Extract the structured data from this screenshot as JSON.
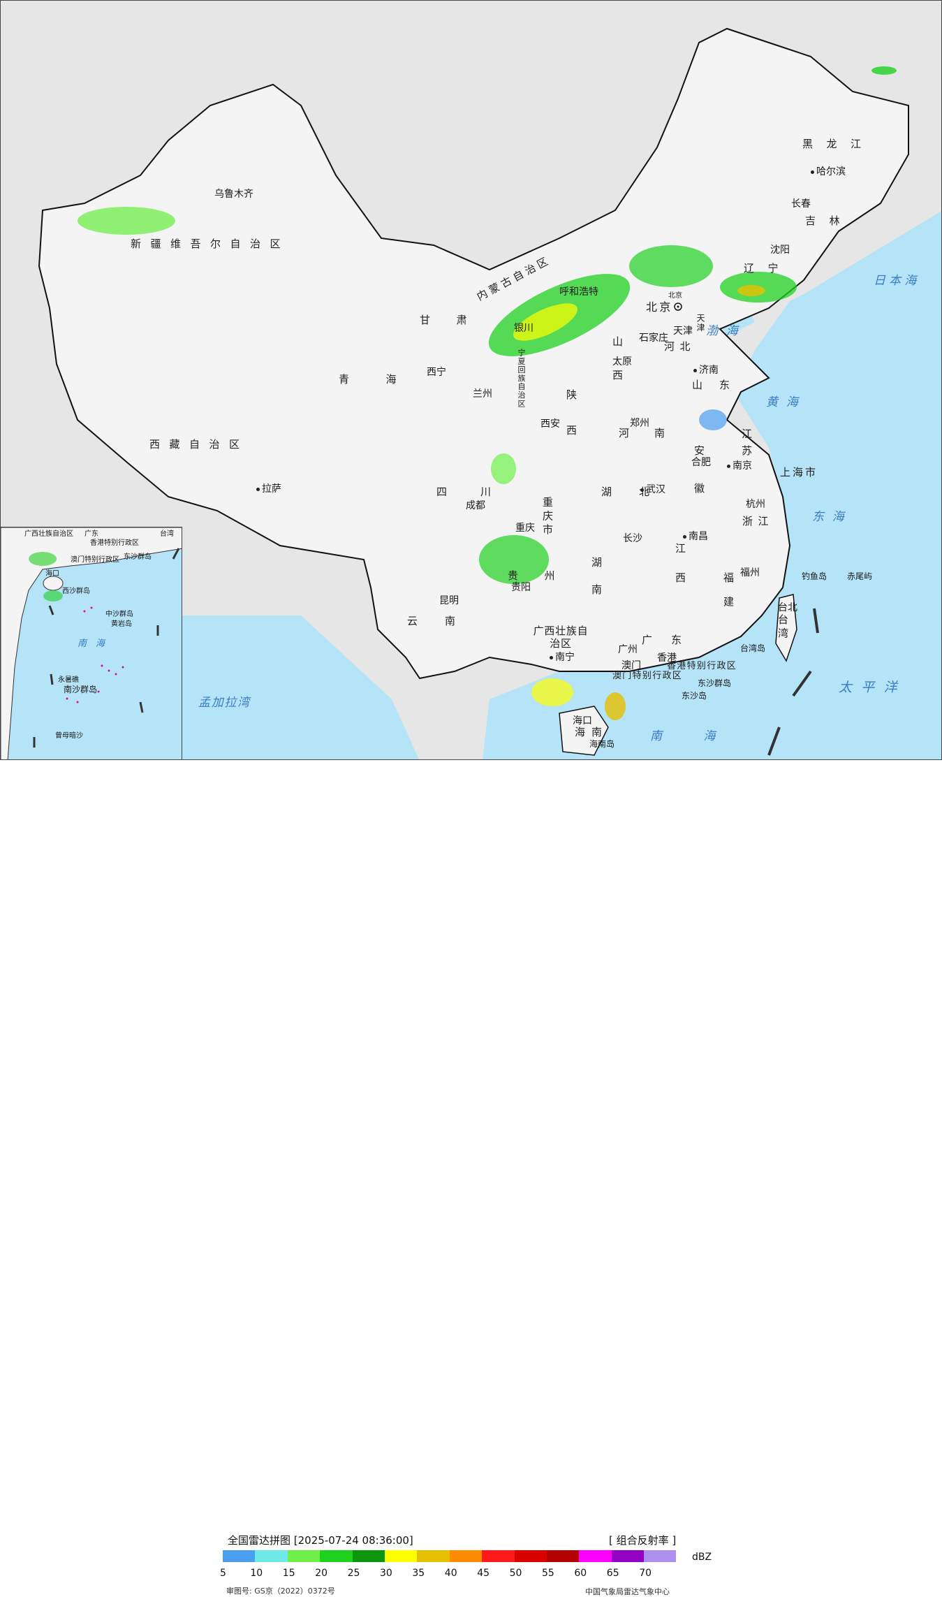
{
  "legend": {
    "title": "全国雷达拼图 [2025-07-24 08:36:00]",
    "product": "[ 组合反射率 ]",
    "unit": "dBZ",
    "colors": [
      "#4a9ef0",
      "#6ee8e8",
      "#6fef4a",
      "#1fd11f",
      "#0b960b",
      "#ffff00",
      "#e6bf00",
      "#ff8c00",
      "#ff1a1a",
      "#d90000",
      "#b30000",
      "#ff00ff",
      "#9400c4",
      "#ad8ff0"
    ],
    "ticks": [
      "5",
      "10",
      "15",
      "20",
      "25",
      "30",
      "35",
      "40",
      "45",
      "50",
      "55",
      "60",
      "65",
      "70"
    ],
    "review_no": "审图号: GS京（2022）0372号",
    "agency": "中国气象局雷达气象中心"
  },
  "provinces": [
    "新疆维吾尔自治区",
    "西藏自治区",
    "青海",
    "甘肃",
    "内蒙古自治区",
    "黑龙江",
    "吉林",
    "辽宁",
    "河北",
    "山西",
    "陕西",
    "宁夏回族自治区",
    "四川",
    "重庆市",
    "贵州",
    "云南",
    "广西壮族自治区",
    "广东",
    "海南",
    "湖南",
    "湖北",
    "河南",
    "山东",
    "江苏",
    "安徽",
    "浙江",
    "江西",
    "福建",
    "台湾",
    "北京",
    "天津",
    "上海市",
    "香港特别行政区",
    "澳门特别行政区"
  ],
  "cities": [
    "乌鲁木齐",
    "拉萨",
    "西宁",
    "兰州",
    "银川",
    "呼和浩特",
    "北京",
    "天津",
    "石家庄",
    "太原",
    "济南",
    "郑州",
    "西安",
    "成都",
    "重庆",
    "贵阳",
    "昆明",
    "南宁",
    "广州",
    "香港",
    "澳门",
    "海口",
    "长沙",
    "武汉",
    "南昌",
    "合肥",
    "南京",
    "杭州",
    "福州",
    "台北",
    "沈阳",
    "长春",
    "哈尔滨"
  ],
  "seas": [
    "渤海",
    "黄海",
    "东海",
    "南海",
    "太平洋",
    "日本海",
    "孟加拉湾"
  ],
  "islands": [
    "钓鱼岛",
    "赤尾屿",
    "台湾岛",
    "海南岛",
    "东沙群岛",
    "东沙岛"
  ],
  "inset": {
    "labels": [
      "广西壮族自治区",
      "广东",
      "香港特别行政区",
      "澳门特别行政区",
      "台湾",
      "东沙群岛",
      "海口",
      "西沙群岛",
      "中沙群岛",
      "黄岩岛",
      "南海",
      "南沙群岛",
      "永暑礁",
      "曾母暗沙"
    ]
  }
}
